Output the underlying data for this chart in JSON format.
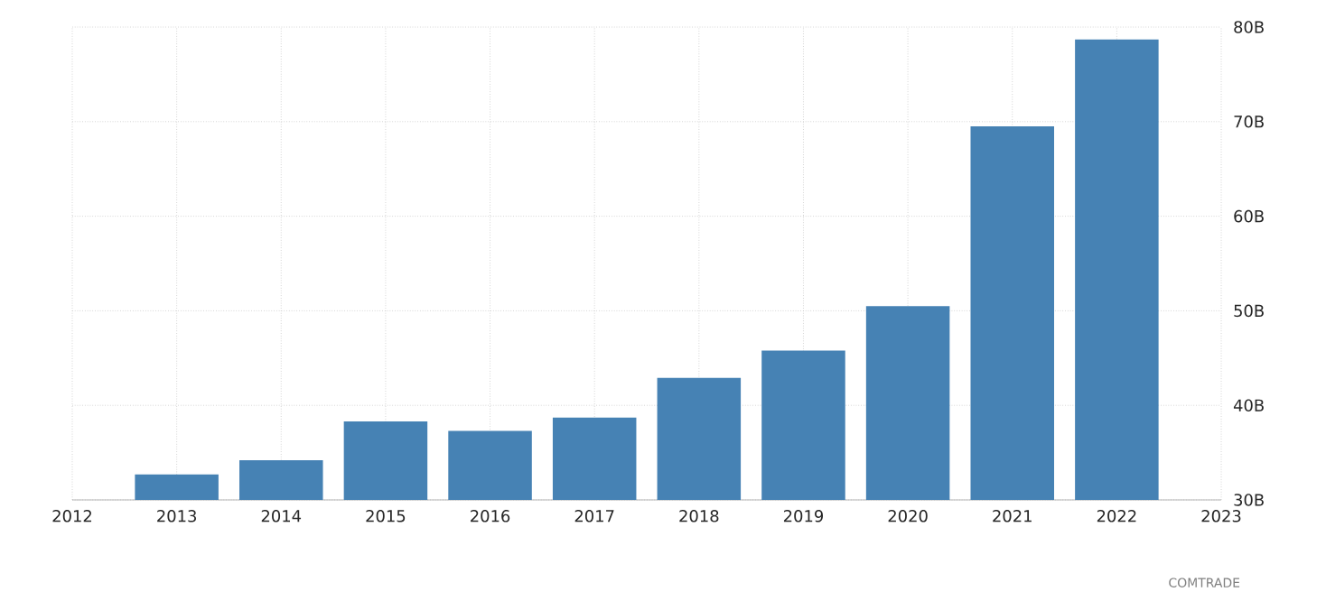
{
  "chart_data": {
    "type": "bar",
    "x": [
      2013,
      2014,
      2015,
      2016,
      2017,
      2018,
      2019,
      2020,
      2021,
      2022
    ],
    "values": [
      32.7,
      34.2,
      38.3,
      37.3,
      38.7,
      42.9,
      45.8,
      50.5,
      69.5,
      78.7
    ],
    "color": "#4682b4",
    "xlim": [
      2012,
      2023
    ],
    "xticks": [
      2012,
      2013,
      2014,
      2015,
      2016,
      2017,
      2018,
      2019,
      2020,
      2021,
      2022,
      2023
    ],
    "ylim": [
      30,
      80
    ],
    "yticks": [
      {
        "value": 30,
        "label": "30B"
      },
      {
        "value": 40,
        "label": "40B"
      },
      {
        "value": 50,
        "label": "50B"
      },
      {
        "value": 60,
        "label": "60B"
      },
      {
        "value": 70,
        "label": "70B"
      },
      {
        "value": 80,
        "label": "80B"
      }
    ],
    "grid": true,
    "annotations": [
      "COMTRADE"
    ]
  }
}
